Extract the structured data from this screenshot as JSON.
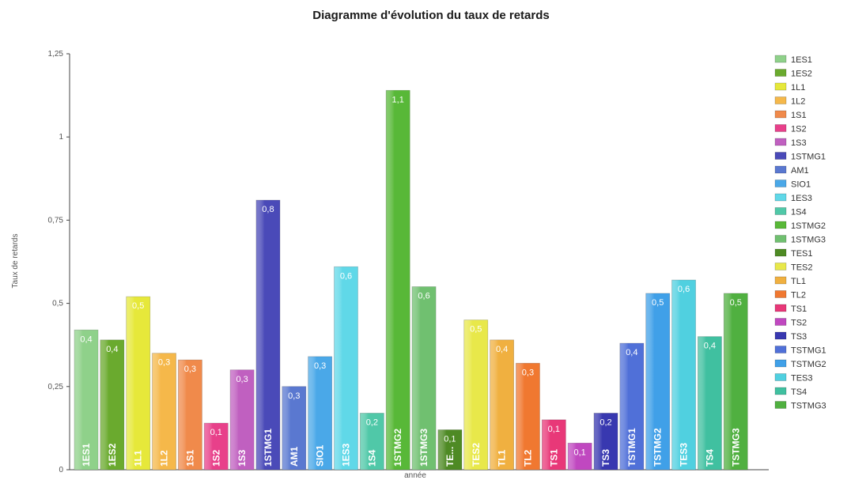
{
  "chart_data": {
    "type": "bar",
    "title": "Diagramme d'évolution du taux de retards",
    "xlabel": "année",
    "ylabel": "Taux de retards",
    "ylim": [
      0,
      1.25
    ],
    "yticks": [
      "0",
      "0,25",
      "0,5",
      "0,75",
      "1",
      "1,25"
    ],
    "ytick_values": [
      0,
      0.25,
      0.5,
      0.75,
      1,
      1.25
    ],
    "grid": false,
    "legend_position": "right",
    "categories": [
      "1ES1",
      "1ES2",
      "1L1",
      "1L2",
      "1S1",
      "1S2",
      "1S3",
      "1STMG1",
      "AM1",
      "SIO1",
      "1ES3",
      "1S4",
      "1STMG2",
      "1STMG3",
      "TES1",
      "TES2",
      "TL1",
      "TL2",
      "TS1",
      "TS2",
      "TS3",
      "TSTMG1",
      "TSTMG2",
      "TES3",
      "TS4",
      "TSTMG3"
    ],
    "bar_labels": [
      "1ES1",
      "1ES2",
      "1L1",
      "1L2",
      "1S1",
      "1S2",
      "1S3",
      "1STMG1",
      "AM1",
      "SIO1",
      "1ES3",
      "1S4",
      "1STMG2",
      "1STMG3",
      "TE...",
      "TES2",
      "TL1",
      "TL2",
      "TS1",
      "",
      "TS3",
      "TSTMG1",
      "TSTMG2",
      "TES3",
      "TS4",
      "TSTMG3"
    ],
    "values": [
      0.42,
      0.39,
      0.52,
      0.35,
      0.33,
      0.14,
      0.3,
      0.81,
      0.25,
      0.34,
      0.61,
      0.17,
      1.14,
      0.55,
      0.12,
      0.45,
      0.39,
      0.32,
      0.15,
      0.08,
      0.17,
      0.38,
      0.53,
      0.57,
      0.4,
      0.53
    ],
    "value_labels": [
      "0,4",
      "0,4",
      "0,5",
      "0,3",
      "0,3",
      "0,1",
      "0,3",
      "0,8",
      "0,3",
      "0,3",
      "0,6",
      "0,2",
      "1,1",
      "0,6",
      "0,1",
      "0,5",
      "0,4",
      "0,3",
      "0,1",
      "0,1",
      "0,2",
      "0,4",
      "0,5",
      "0,6",
      "0,4",
      "0,5"
    ],
    "colors": [
      "#8fd18a",
      "#6aaa2e",
      "#e6e83a",
      "#f5b84a",
      "#f08a4b",
      "#e8408a",
      "#c060c0",
      "#4a4ab8",
      "#5a78d0",
      "#4aa8e8",
      "#60d8e8",
      "#50c8a8",
      "#58b838",
      "#70c070",
      "#4e8a24",
      "#e8e84a",
      "#f0b040",
      "#f07830",
      "#e83878",
      "#c048c0",
      "#3838b0",
      "#5070d8",
      "#40a0e8",
      "#50d0e0",
      "#40c0a0",
      "#50b040"
    ],
    "legend": [
      "1ES1",
      "1ES2",
      "1L1",
      "1L2",
      "1S1",
      "1S2",
      "1S3",
      "1STMG1",
      "AM1",
      "SIO1",
      "1ES3",
      "1S4",
      "1STMG2",
      "1STMG3",
      "TES1",
      "TES2",
      "TL1",
      "TL2",
      "TS1",
      "TS2",
      "TS3",
      "TSTMG1",
      "TSTMG2",
      "TES3",
      "TS4",
      "TSTMG3"
    ]
  }
}
